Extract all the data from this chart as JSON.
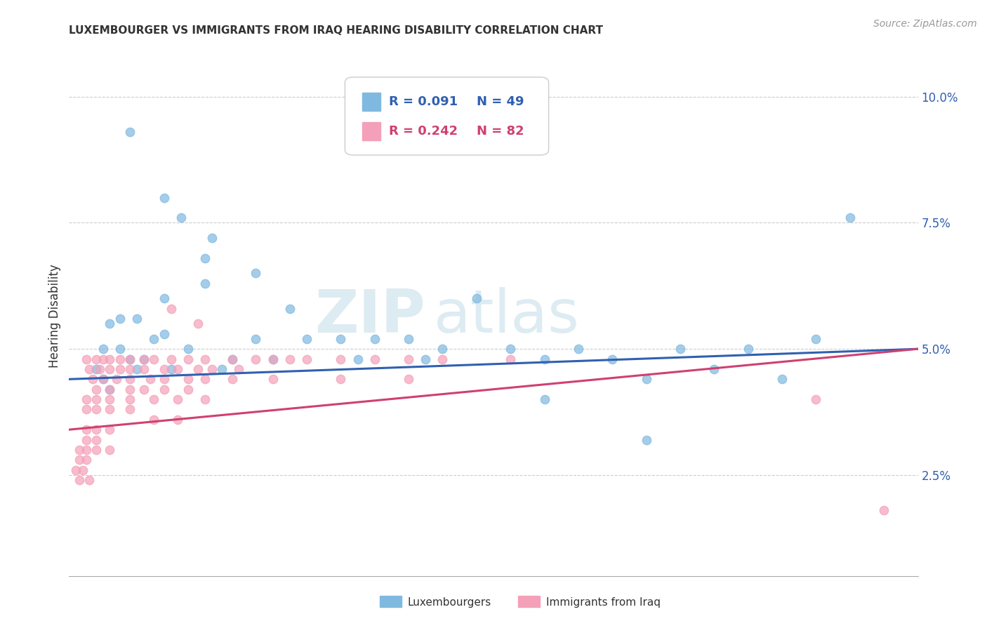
{
  "title": "LUXEMBOURGER VS IMMIGRANTS FROM IRAQ HEARING DISABILITY CORRELATION CHART",
  "source": "Source: ZipAtlas.com",
  "ylabel": "Hearing Disability",
  "y_ticks": [
    0.025,
    0.05,
    0.075,
    0.1
  ],
  "y_tick_labels": [
    "2.5%",
    "5.0%",
    "7.5%",
    "10.0%"
  ],
  "x_min": 0.0,
  "x_max": 0.25,
  "y_min": 0.005,
  "y_max": 0.108,
  "legend_r1": "R = 0.091",
  "legend_n1": "N = 49",
  "legend_r2": "R = 0.242",
  "legend_n2": "N = 82",
  "color_blue": "#7fb9e0",
  "color_pink": "#f4a0b8",
  "color_line_blue": "#3060b0",
  "color_line_pink": "#d04070",
  "watermark_zip": "ZIP",
  "watermark_atlas": "atlas",
  "blue_line_x0": 0.0,
  "blue_line_y0": 0.044,
  "blue_line_x1": 0.25,
  "blue_line_y1": 0.05,
  "pink_line_x0": 0.0,
  "pink_line_y0": 0.034,
  "pink_line_x1": 0.25,
  "pink_line_y1": 0.05,
  "scatter_blue": [
    [
      0.018,
      0.093
    ],
    [
      0.028,
      0.08
    ],
    [
      0.033,
      0.076
    ],
    [
      0.04,
      0.068
    ],
    [
      0.042,
      0.072
    ],
    [
      0.04,
      0.063
    ],
    [
      0.055,
      0.065
    ],
    [
      0.028,
      0.06
    ],
    [
      0.12,
      0.06
    ],
    [
      0.065,
      0.058
    ],
    [
      0.015,
      0.056
    ],
    [
      0.02,
      0.056
    ],
    [
      0.012,
      0.055
    ],
    [
      0.028,
      0.053
    ],
    [
      0.025,
      0.052
    ],
    [
      0.055,
      0.052
    ],
    [
      0.07,
      0.052
    ],
    [
      0.08,
      0.052
    ],
    [
      0.09,
      0.052
    ],
    [
      0.1,
      0.052
    ],
    [
      0.11,
      0.05
    ],
    [
      0.13,
      0.05
    ],
    [
      0.15,
      0.05
    ],
    [
      0.18,
      0.05
    ],
    [
      0.2,
      0.05
    ],
    [
      0.22,
      0.052
    ],
    [
      0.035,
      0.05
    ],
    [
      0.015,
      0.05
    ],
    [
      0.01,
      0.05
    ],
    [
      0.048,
      0.048
    ],
    [
      0.06,
      0.048
    ],
    [
      0.085,
      0.048
    ],
    [
      0.105,
      0.048
    ],
    [
      0.14,
      0.048
    ],
    [
      0.16,
      0.048
    ],
    [
      0.23,
      0.076
    ],
    [
      0.018,
      0.048
    ],
    [
      0.022,
      0.048
    ],
    [
      0.008,
      0.046
    ],
    [
      0.02,
      0.046
    ],
    [
      0.03,
      0.046
    ],
    [
      0.045,
      0.046
    ],
    [
      0.19,
      0.046
    ],
    [
      0.17,
      0.044
    ],
    [
      0.21,
      0.044
    ],
    [
      0.01,
      0.044
    ],
    [
      0.012,
      0.042
    ],
    [
      0.14,
      0.04
    ],
    [
      0.17,
      0.032
    ]
  ],
  "scatter_pink": [
    [
      0.005,
      0.048
    ],
    [
      0.008,
      0.048
    ],
    [
      0.01,
      0.048
    ],
    [
      0.012,
      0.048
    ],
    [
      0.015,
      0.048
    ],
    [
      0.018,
      0.048
    ],
    [
      0.022,
      0.048
    ],
    [
      0.025,
      0.048
    ],
    [
      0.03,
      0.048
    ],
    [
      0.035,
      0.048
    ],
    [
      0.04,
      0.048
    ],
    [
      0.048,
      0.048
    ],
    [
      0.055,
      0.048
    ],
    [
      0.06,
      0.048
    ],
    [
      0.065,
      0.048
    ],
    [
      0.07,
      0.048
    ],
    [
      0.08,
      0.048
    ],
    [
      0.09,
      0.048
    ],
    [
      0.1,
      0.048
    ],
    [
      0.11,
      0.048
    ],
    [
      0.13,
      0.048
    ],
    [
      0.22,
      0.04
    ],
    [
      0.006,
      0.046
    ],
    [
      0.009,
      0.046
    ],
    [
      0.012,
      0.046
    ],
    [
      0.015,
      0.046
    ],
    [
      0.018,
      0.046
    ],
    [
      0.022,
      0.046
    ],
    [
      0.028,
      0.046
    ],
    [
      0.032,
      0.046
    ],
    [
      0.038,
      0.046
    ],
    [
      0.042,
      0.046
    ],
    [
      0.05,
      0.046
    ],
    [
      0.007,
      0.044
    ],
    [
      0.01,
      0.044
    ],
    [
      0.014,
      0.044
    ],
    [
      0.018,
      0.044
    ],
    [
      0.024,
      0.044
    ],
    [
      0.028,
      0.044
    ],
    [
      0.035,
      0.044
    ],
    [
      0.04,
      0.044
    ],
    [
      0.048,
      0.044
    ],
    [
      0.06,
      0.044
    ],
    [
      0.08,
      0.044
    ],
    [
      0.1,
      0.044
    ],
    [
      0.008,
      0.042
    ],
    [
      0.012,
      0.042
    ],
    [
      0.018,
      0.042
    ],
    [
      0.022,
      0.042
    ],
    [
      0.028,
      0.042
    ],
    [
      0.035,
      0.042
    ],
    [
      0.005,
      0.04
    ],
    [
      0.008,
      0.04
    ],
    [
      0.012,
      0.04
    ],
    [
      0.018,
      0.04
    ],
    [
      0.025,
      0.04
    ],
    [
      0.032,
      0.04
    ],
    [
      0.04,
      0.04
    ],
    [
      0.005,
      0.038
    ],
    [
      0.008,
      0.038
    ],
    [
      0.012,
      0.038
    ],
    [
      0.018,
      0.038
    ],
    [
      0.025,
      0.036
    ],
    [
      0.032,
      0.036
    ],
    [
      0.005,
      0.034
    ],
    [
      0.008,
      0.034
    ],
    [
      0.012,
      0.034
    ],
    [
      0.005,
      0.032
    ],
    [
      0.008,
      0.032
    ],
    [
      0.003,
      0.03
    ],
    [
      0.005,
      0.03
    ],
    [
      0.008,
      0.03
    ],
    [
      0.012,
      0.03
    ],
    [
      0.003,
      0.028
    ],
    [
      0.005,
      0.028
    ],
    [
      0.002,
      0.026
    ],
    [
      0.004,
      0.026
    ],
    [
      0.003,
      0.024
    ],
    [
      0.006,
      0.024
    ],
    [
      0.03,
      0.058
    ],
    [
      0.038,
      0.055
    ],
    [
      0.24,
      0.018
    ]
  ]
}
